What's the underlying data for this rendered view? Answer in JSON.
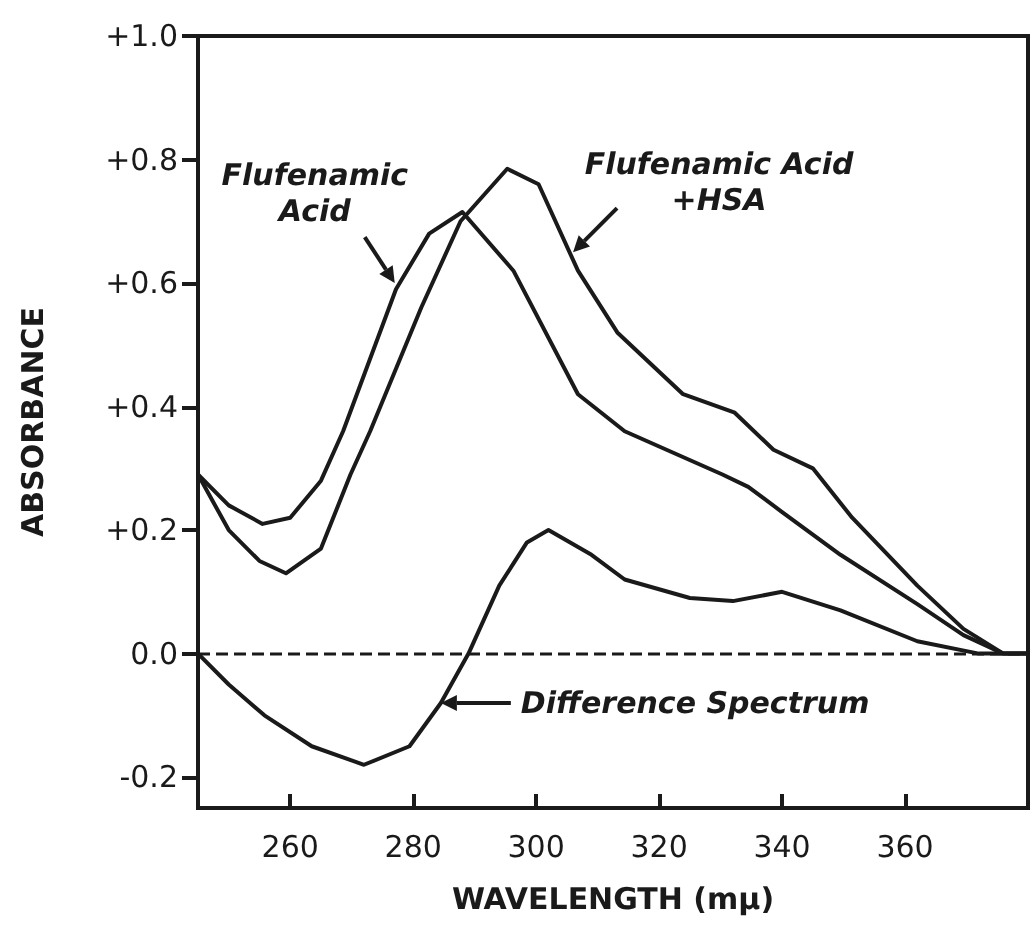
{
  "chart_data": {
    "type": "line",
    "xlabel": "WAVELENGTH (mμ)",
    "ylabel": "ABSORBANCE",
    "xlim": [
      245,
      380
    ],
    "xticks": [
      260,
      280,
      300,
      320,
      340,
      360
    ],
    "ylim": [
      -0.25,
      1.0
    ],
    "yticks": [
      {
        "value": -0.2,
        "label": "-0.2"
      },
      {
        "value": 0,
        "label": "0.0"
      },
      {
        "value": 0.2,
        "label": "+0.2"
      },
      {
        "value": 0.4,
        "label": "+0.4"
      },
      {
        "value": 0.6,
        "label": "+0.6"
      },
      {
        "value": 0.8,
        "label": "+0.8"
      },
      {
        "value": 1.0,
        "label": "+1.0"
      }
    ],
    "grid": false,
    "marker": "none",
    "line_style": "solid",
    "series": [
      {
        "color": "#1a1a1a",
        "x": [
          245,
          250,
          255.5,
          260,
          265,
          268.6,
          277.2,
          282.6,
          288,
          296.3,
          306.8,
          314.4,
          330.3,
          334.5,
          339.9,
          349.5,
          362,
          369.5,
          376,
          380
        ],
        "values": [
          0.29,
          0.24,
          0.21,
          0.22,
          0.28,
          0.36,
          0.59,
          0.68,
          0.715,
          0.62,
          0.42,
          0.36,
          0.29,
          0.27,
          0.23,
          0.16,
          0.08,
          0.03,
          0,
          0
        ]
      },
      {
        "color": "#1a1a1a",
        "x": [
          245,
          250,
          255,
          259.3,
          265,
          269.8,
          273,
          281.3,
          287.7,
          295.3,
          300.4,
          306.8,
          313.2,
          323.9,
          332.3,
          338.6,
          345,
          351.4,
          362,
          369.5,
          376,
          380
        ],
        "values": [
          0.29,
          0.2,
          0.15,
          0.13,
          0.17,
          0.29,
          0.36,
          0.56,
          0.7,
          0.785,
          0.76,
          0.62,
          0.52,
          0.42,
          0.39,
          0.33,
          0.3,
          0.22,
          0.11,
          0.04,
          0,
          0
        ]
      },
      {
        "color": "#1a1a1a",
        "x": [
          245,
          250,
          255.8,
          263.5,
          272,
          279.4,
          284.5,
          289,
          294,
          298.5,
          302,
          309,
          314.4,
          325,
          332,
          340,
          349.5,
          362,
          372,
          380
        ],
        "values": [
          0,
          -0.05,
          -0.1,
          -0.15,
          -0.18,
          -0.15,
          -0.08,
          0,
          0.11,
          0.18,
          0.2,
          0.16,
          0.12,
          0.09,
          0.085,
          0.1,
          0.07,
          0.02,
          0,
          0
        ]
      }
    ],
    "ref_lines": [
      {
        "axis": "y",
        "value": 0,
        "color": "#1a1a1a",
        "line_style": "dashed"
      }
    ],
    "annotations": [
      {
        "text": "Flufenamic\nAcid",
        "x": 277,
        "y": 0.6
      },
      {
        "text": "Flufenamic Acid\n+HSA",
        "x": 306,
        "y": 0.65
      },
      {
        "text": "Difference Spectrum",
        "x": 284.5,
        "y": -0.08
      }
    ]
  }
}
